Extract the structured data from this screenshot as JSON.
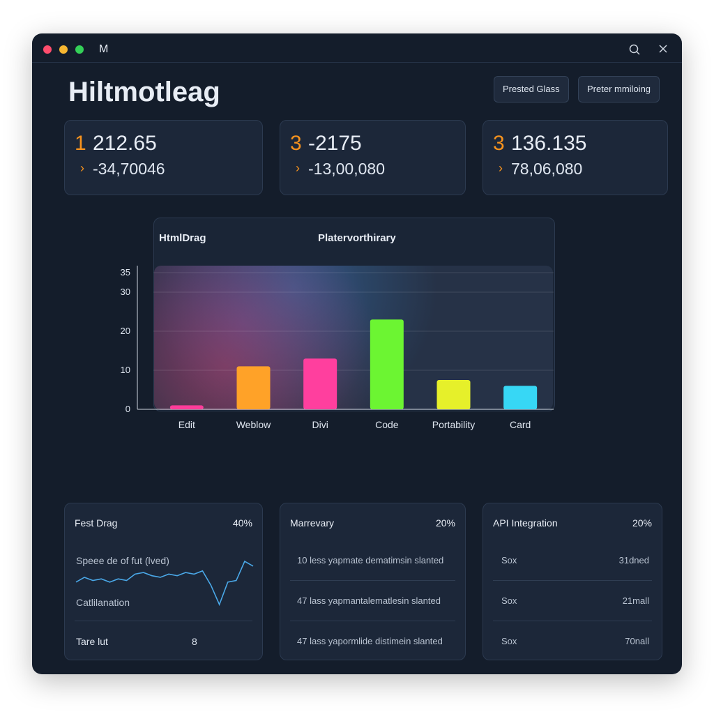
{
  "window": {
    "title": "M"
  },
  "header": {
    "title": "Hiltmotleag",
    "buttons": [
      "Prested Glass",
      "Preter mmiloing"
    ]
  },
  "stats": [
    {
      "index": "1",
      "value": "212.65",
      "delta": "-34,70046"
    },
    {
      "index": "3",
      "value": "-2175",
      "delta": "-13,00,080"
    },
    {
      "index": "3",
      "value": "136.135",
      "delta": "78,06,080"
    }
  ],
  "chart": {
    "type": "bar",
    "title": "HtmlDrag",
    "subtitle": "Platervorthirary",
    "categories": [
      "Edit",
      "Weblow",
      "Divi",
      "Code",
      "Portability",
      "Card"
    ],
    "values": [
      1,
      11,
      13,
      23,
      7.5,
      6
    ],
    "colors": [
      "#ff3d9a",
      "#ffa228",
      "#ff3f9e",
      "#6cf532",
      "#e6f02a",
      "#37d7f5"
    ],
    "ylim": [
      0,
      35
    ],
    "yticks": [
      0,
      10,
      20,
      30,
      35
    ],
    "grid": true
  },
  "cards": [
    {
      "title": "Fest Drag",
      "percent": "40%",
      "rows": [
        "Speee de of fut (lved)",
        "Catlilanation"
      ],
      "footer": [
        "Tare lut",
        "8"
      ],
      "sparkline": [
        29,
        32,
        30,
        31,
        29,
        31,
        30,
        34,
        35,
        33,
        32,
        34,
        33,
        35,
        34,
        36,
        27,
        15,
        29,
        30,
        42,
        39
      ]
    },
    {
      "title": "Marrevary",
      "percent": "20%",
      "rows": [
        "10 less yapmate dematimsin slanted",
        "47 lass yapmantalematlesin slanted",
        "47 lass yapormlide distimein slanted"
      ]
    },
    {
      "title": "API Integration",
      "percent": "20%",
      "rows": [
        [
          "Sox",
          "31dned"
        ],
        [
          "Sox",
          "21mall"
        ],
        [
          "Sox",
          "70nall"
        ]
      ]
    }
  ]
}
